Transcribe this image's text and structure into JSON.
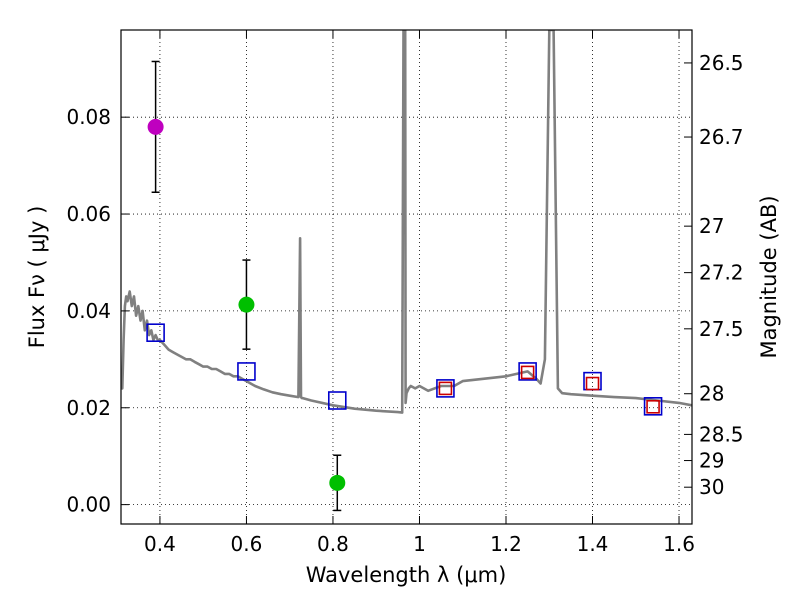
{
  "chart_data": {
    "type": "scatter",
    "xlabel": "Wavelength  λ (μm)",
    "ylabel": "Flux  Fν  ( μJy )",
    "y2label": "Magnitude (AB)",
    "xlim": [
      0.31,
      1.63
    ],
    "ylim": [
      -0.004,
      0.098
    ],
    "grid": true,
    "x_ticks": [
      0.4,
      0.6,
      0.8,
      1.0,
      1.2,
      1.4,
      1.6
    ],
    "x_tick_labels": [
      "0.4",
      "0.6",
      "0.8",
      "1",
      "1.2",
      "1.4",
      "1.6"
    ],
    "y_ticks": [
      0.0,
      0.02,
      0.04,
      0.06,
      0.08
    ],
    "y_tick_labels": [
      "0.00",
      "0.02",
      "0.04",
      "0.06",
      "0.08"
    ],
    "mag_ticks": [
      {
        "label": "26.5",
        "flux": 0.0912
      },
      {
        "label": "26.7",
        "flux": 0.0759
      },
      {
        "label": "27",
        "flux": 0.0575
      },
      {
        "label": "27.2",
        "flux": 0.0479
      },
      {
        "label": "27.5",
        "flux": 0.0363
      },
      {
        "label": "28",
        "flux": 0.0229
      },
      {
        "label": "28.5",
        "flux": 0.0145
      },
      {
        "label": "29",
        "flux": 0.0091
      },
      {
        "label": "30",
        "flux": 0.0036
      }
    ],
    "series": [
      {
        "name": "model spectrum",
        "kind": "line",
        "color": "#808080",
        "x": [
          0.31,
          0.313,
          0.316,
          0.319,
          0.322,
          0.325,
          0.33,
          0.335,
          0.34,
          0.345,
          0.35,
          0.355,
          0.36,
          0.365,
          0.37,
          0.375,
          0.38,
          0.385,
          0.39,
          0.395,
          0.4,
          0.41,
          0.42,
          0.43,
          0.44,
          0.45,
          0.46,
          0.47,
          0.48,
          0.49,
          0.5,
          0.51,
          0.52,
          0.53,
          0.54,
          0.55,
          0.56,
          0.57,
          0.58,
          0.59,
          0.6,
          0.62,
          0.64,
          0.66,
          0.68,
          0.7,
          0.72,
          0.724,
          0.726,
          0.728,
          0.73,
          0.75,
          0.8,
          0.85,
          0.9,
          0.95,
          0.96,
          0.963,
          0.964,
          0.967,
          0.968,
          0.97,
          0.975,
          0.98,
          0.99,
          1.0,
          1.02,
          1.05,
          1.08,
          1.1,
          1.15,
          1.2,
          1.25,
          1.27,
          1.28,
          1.29,
          1.3,
          1.31,
          1.32,
          1.33,
          1.35,
          1.4,
          1.45,
          1.5,
          1.55,
          1.6,
          1.63
        ],
        "y": [
          0.026,
          0.024,
          0.034,
          0.041,
          0.043,
          0.042,
          0.044,
          0.041,
          0.043,
          0.039,
          0.041,
          0.038,
          0.04,
          0.036,
          0.038,
          0.035,
          0.036,
          0.034,
          0.035,
          0.034,
          0.034,
          0.033,
          0.032,
          0.0315,
          0.031,
          0.0305,
          0.03,
          0.03,
          0.0295,
          0.029,
          0.0285,
          0.0285,
          0.028,
          0.028,
          0.0275,
          0.027,
          0.027,
          0.0265,
          0.0265,
          0.026,
          0.0255,
          0.0245,
          0.0238,
          0.0232,
          0.0228,
          0.0225,
          0.0222,
          0.055,
          0.0222,
          0.022,
          0.022,
          0.0215,
          0.0205,
          0.0198,
          0.0194,
          0.0191,
          0.019,
          0.098,
          0.098,
          0.098,
          0.021,
          0.023,
          0.024,
          0.0245,
          0.024,
          0.0245,
          0.0235,
          0.0245,
          0.0245,
          0.0255,
          0.026,
          0.0265,
          0.0275,
          0.026,
          0.025,
          0.03,
          0.098,
          0.098,
          0.024,
          0.023,
          0.0228,
          0.0225,
          0.0222,
          0.022,
          0.0215,
          0.021,
          0.0205
        ]
      },
      {
        "name": "observed photometry",
        "kind": "points",
        "x": [
          0.39,
          0.6,
          0.81
        ],
        "y": [
          0.078,
          0.0413,
          0.0045
        ],
        "yerr": [
          0.0135,
          0.0092,
          0.0057
        ],
        "colors": [
          "#bf00bf",
          "#00bf00",
          "#00bf00"
        ]
      },
      {
        "name": "model synthetic photometry",
        "kind": "open squares",
        "color": "#0000cc",
        "x": [
          0.39,
          0.6,
          0.81,
          1.06,
          1.25,
          1.4,
          1.54
        ],
        "y": [
          0.0355,
          0.0275,
          0.0215,
          0.024,
          0.0275,
          0.0255,
          0.0203
        ]
      },
      {
        "name": "model synthetic photometry (alt)",
        "kind": "small open squares",
        "color": "#cc0000",
        "x": [
          1.06,
          1.25,
          1.4,
          1.54
        ],
        "y": [
          0.024,
          0.0273,
          0.025,
          0.0202
        ]
      }
    ]
  }
}
